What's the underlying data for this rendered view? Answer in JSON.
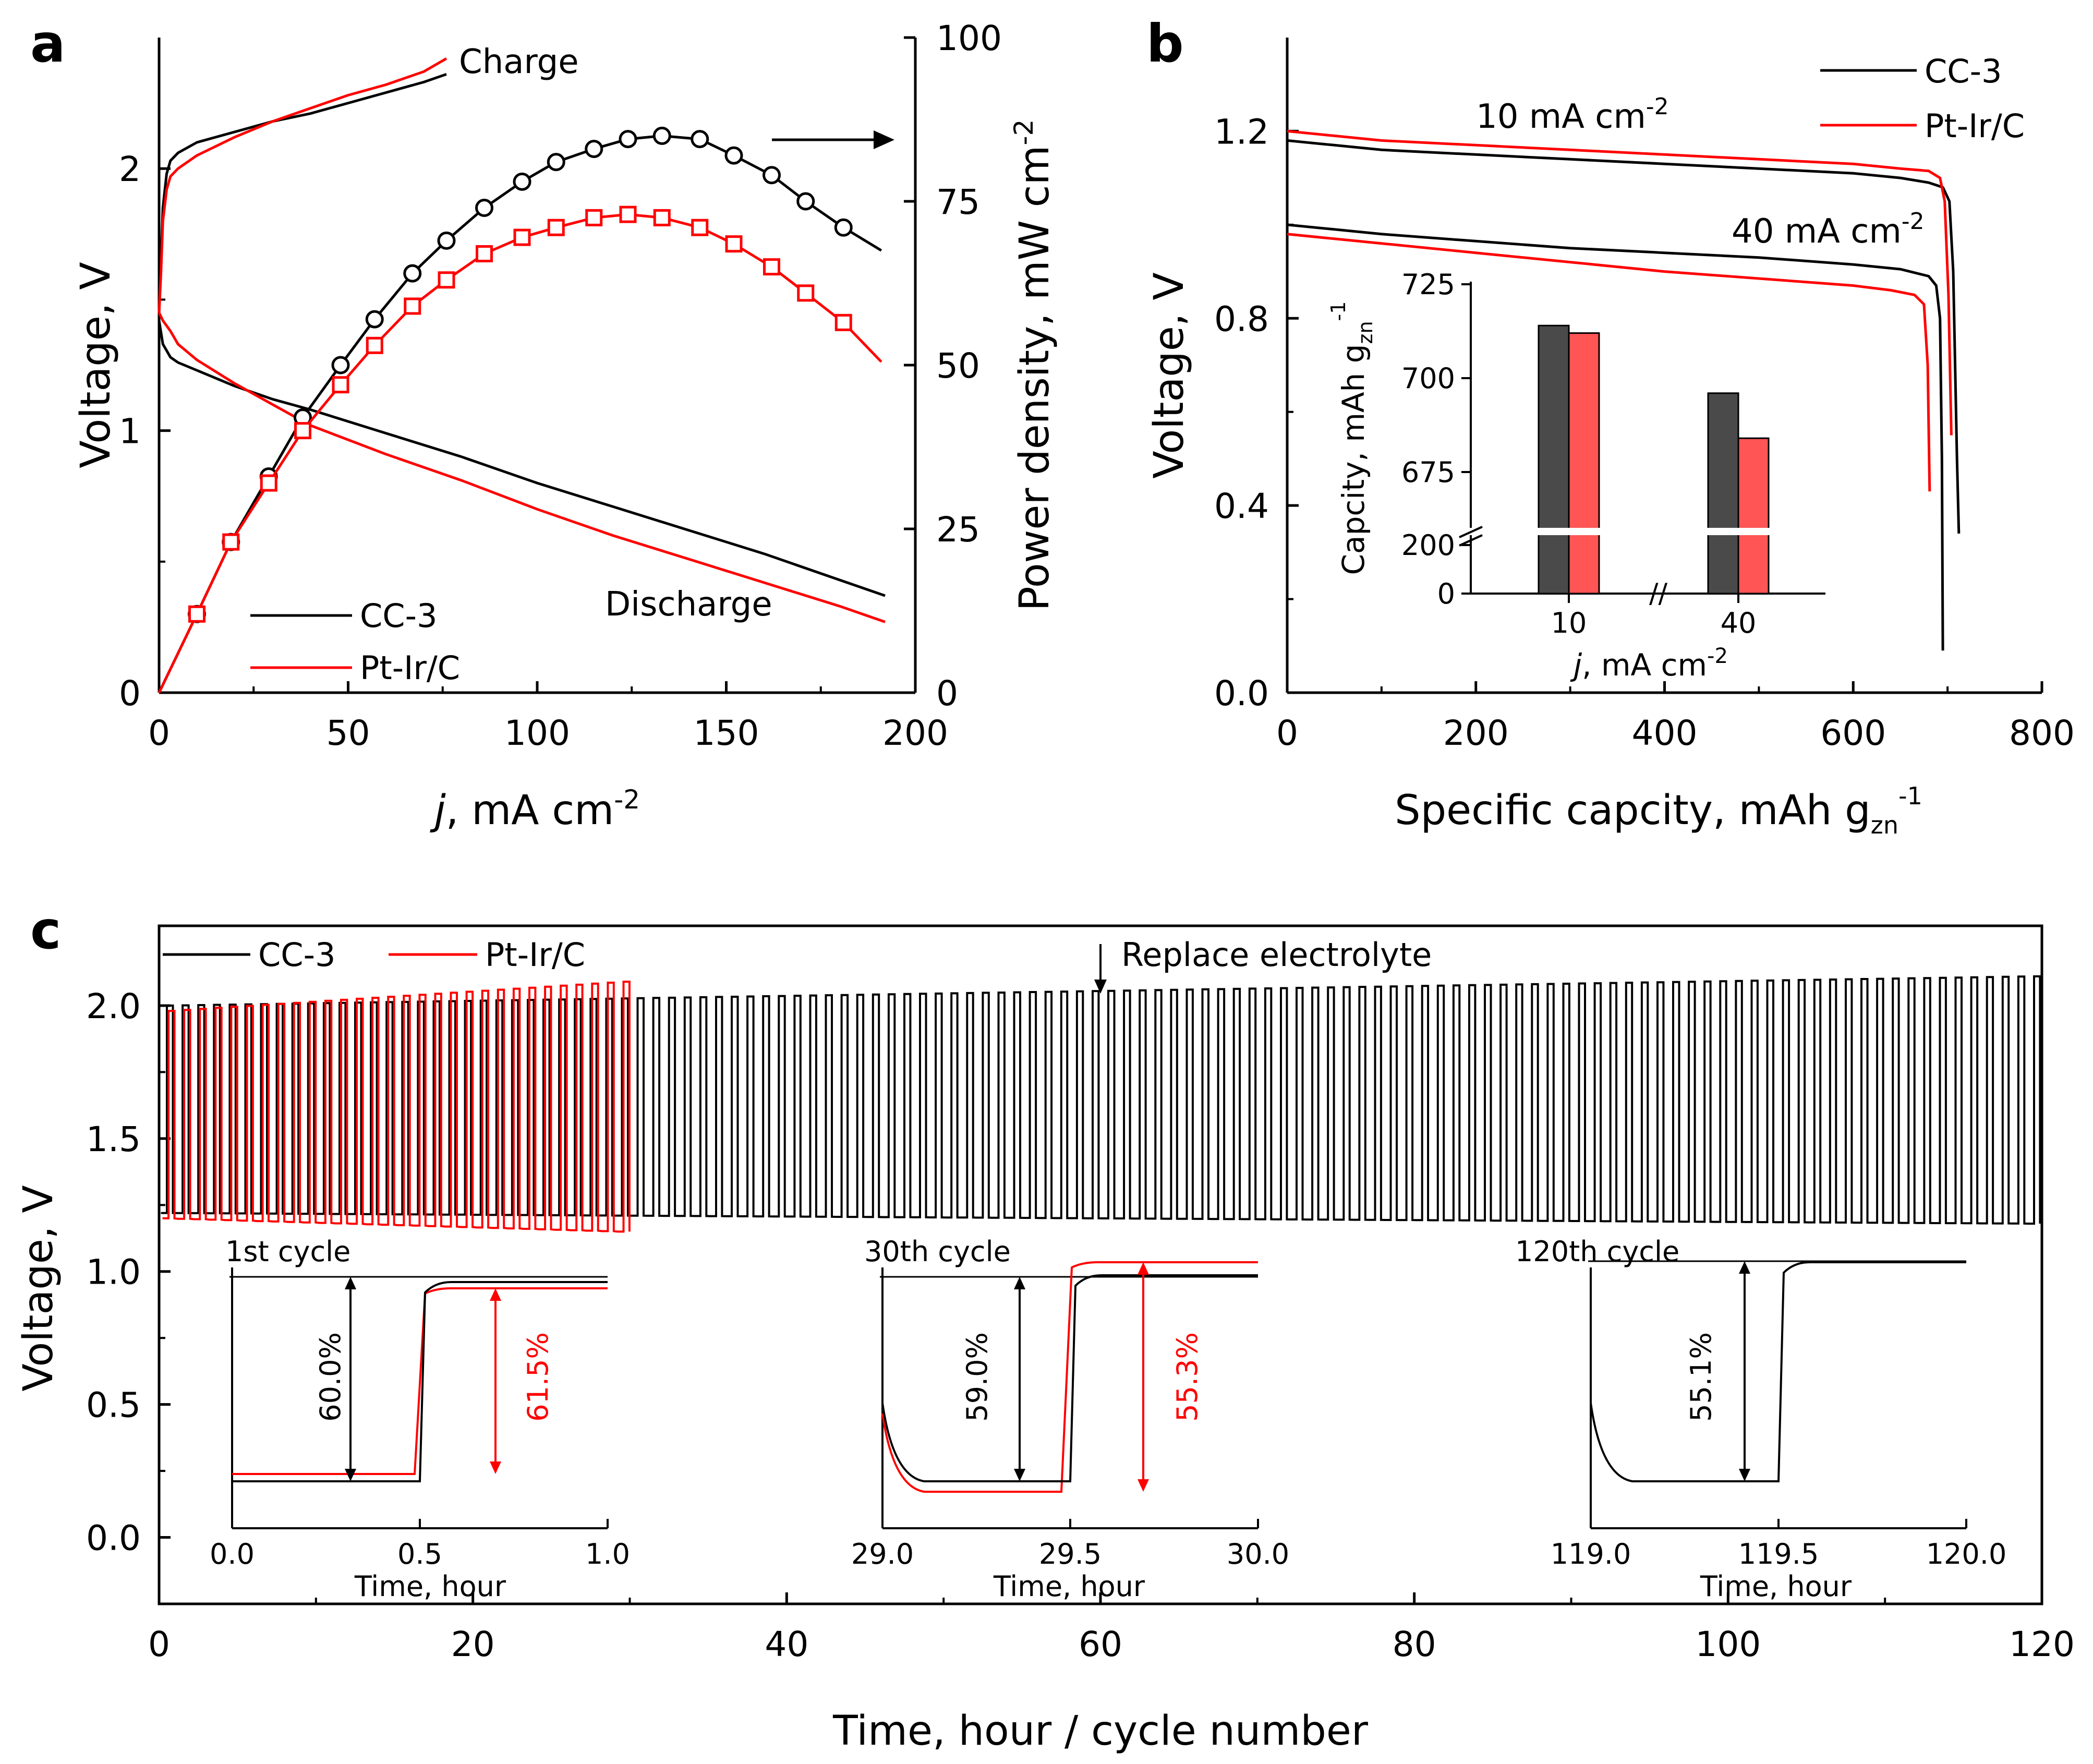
{
  "colors": {
    "cc3": "#000000",
    "ptir": "#ff0000",
    "bar_cc3": "#4a4a4a",
    "bar_ptir": "#ff5555"
  },
  "chart_data": [
    {
      "panel": "a",
      "type": "line",
      "xlabel_italic": "j",
      "xlabel_rest": ", mA cm",
      "xlabel_sup": "-2",
      "ylabel": "Voltage, V",
      "y2label": "Power density, mW cm",
      "y2label_sup": "-2",
      "xlim": [
        0,
        200
      ],
      "ylim": [
        0,
        2.5
      ],
      "y2lim": [
        0,
        100
      ],
      "xticks": [
        "0",
        "50",
        "100",
        "150",
        "200"
      ],
      "yticks": [
        "0",
        "1",
        "2"
      ],
      "y2ticks": [
        "0",
        "25",
        "50",
        "75",
        "100"
      ],
      "annotations": {
        "charge": "Charge",
        "discharge": "Discharge"
      },
      "legend": [
        "CC-3",
        "Pt-Ir/C"
      ],
      "series": [
        {
          "name": "CC-3",
          "role": "charge",
          "axis": "left",
          "x": [
            0,
            0.5,
            1,
            2,
            3,
            5,
            10,
            20,
            30,
            40,
            50,
            60,
            70,
            76
          ],
          "y": [
            1.45,
            1.65,
            1.85,
            1.98,
            2.03,
            2.06,
            2.1,
            2.14,
            2.18,
            2.21,
            2.25,
            2.29,
            2.33,
            2.36
          ]
        },
        {
          "name": "Pt-Ir/C",
          "role": "charge",
          "axis": "left",
          "x": [
            0,
            0.5,
            1,
            2,
            3,
            5,
            10,
            20,
            30,
            40,
            50,
            60,
            70,
            76
          ],
          "y": [
            1.45,
            1.6,
            1.8,
            1.92,
            1.97,
            2.0,
            2.05,
            2.12,
            2.18,
            2.23,
            2.28,
            2.32,
            2.37,
            2.42
          ]
        },
        {
          "name": "CC-3",
          "role": "discharge",
          "axis": "left",
          "x": [
            0,
            1,
            3,
            5,
            10,
            20,
            30,
            40,
            60,
            80,
            100,
            120,
            140,
            160,
            180,
            192
          ],
          "y": [
            1.42,
            1.33,
            1.28,
            1.26,
            1.23,
            1.17,
            1.12,
            1.08,
            0.99,
            0.9,
            0.8,
            0.71,
            0.62,
            0.53,
            0.43,
            0.37
          ]
        },
        {
          "name": "Pt-Ir/C",
          "role": "discharge",
          "axis": "left",
          "x": [
            0,
            1,
            3,
            5,
            10,
            20,
            30,
            40,
            60,
            80,
            100,
            120,
            140,
            160,
            180,
            192
          ],
          "y": [
            1.45,
            1.42,
            1.38,
            1.33,
            1.27,
            1.18,
            1.1,
            1.02,
            0.91,
            0.81,
            0.7,
            0.6,
            0.51,
            0.42,
            0.33,
            0.27
          ]
        },
        {
          "name": "CC-3",
          "role": "power",
          "axis": "right",
          "x": [
            0,
            10,
            19,
            29,
            38,
            48,
            57,
            67,
            76,
            86,
            96,
            105,
            115,
            124,
            133,
            143,
            152,
            162,
            171,
            181,
            191
          ],
          "y": [
            0,
            12,
            23,
            33,
            42,
            50,
            57,
            64,
            69,
            74,
            78,
            81,
            83,
            84.5,
            85,
            84.5,
            82,
            79,
            75,
            71,
            67.5
          ]
        },
        {
          "name": "Pt-Ir/C",
          "role": "power",
          "axis": "right",
          "x": [
            0,
            10,
            19,
            29,
            38,
            48,
            57,
            67,
            76,
            86,
            96,
            105,
            115,
            124,
            133,
            143,
            152,
            162,
            171,
            181,
            191
          ],
          "y": [
            0,
            12,
            23,
            32,
            40,
            47,
            53,
            59,
            63,
            67,
            69.5,
            71,
            72.5,
            73,
            72.5,
            71,
            68.5,
            65,
            61,
            56.5,
            50.5
          ]
        }
      ]
    },
    {
      "panel": "b",
      "type": "line",
      "xlabel": "Specific capcity, mAh g",
      "xlabel_sub": "zn",
      "xlabel_sup": "-1",
      "ylabel": "Voltage, V",
      "xlim": [
        0,
        800
      ],
      "ylim": [
        0,
        1.4
      ],
      "xticks": [
        "0",
        "200",
        "400",
        "600",
        "800"
      ],
      "yticks": [
        "0.0",
        "0.4",
        "0.8",
        "1.2"
      ],
      "annotations": {
        "j10_num": "10 mA cm",
        "j10_sup": "-2",
        "j40_num": "40 mA cm",
        "j40_sup": "-2"
      },
      "legend": [
        "CC-3",
        "Pt-Ir/C"
      ],
      "series": [
        {
          "name": "CC-3",
          "current": "10 mA cm-2",
          "x": [
            0,
            50,
            100,
            200,
            300,
            400,
            500,
            600,
            650,
            680,
            695,
            702,
            706,
            710,
            712
          ],
          "y": [
            1.18,
            1.17,
            1.16,
            1.15,
            1.14,
            1.13,
            1.12,
            1.11,
            1.1,
            1.09,
            1.08,
            1.05,
            0.9,
            0.5,
            0.34
          ]
        },
        {
          "name": "Pt-Ir/C",
          "current": "10 mA cm-2",
          "x": [
            0,
            50,
            100,
            200,
            300,
            400,
            500,
            600,
            650,
            680,
            692,
            697,
            701,
            704
          ],
          "y": [
            1.2,
            1.19,
            1.18,
            1.17,
            1.16,
            1.15,
            1.14,
            1.13,
            1.12,
            1.115,
            1.1,
            1.05,
            0.85,
            0.55
          ]
        },
        {
          "name": "CC-3",
          "current": "40 mA cm-2",
          "x": [
            0,
            50,
            100,
            200,
            300,
            400,
            500,
            600,
            650,
            680,
            688,
            692,
            694,
            695
          ],
          "y": [
            1.0,
            0.99,
            0.98,
            0.965,
            0.95,
            0.94,
            0.93,
            0.915,
            0.905,
            0.89,
            0.87,
            0.8,
            0.5,
            0.09
          ]
        },
        {
          "name": "Pt-Ir/C",
          "current": "40 mA cm-2",
          "x": [
            0,
            50,
            100,
            200,
            300,
            400,
            500,
            600,
            640,
            665,
            675,
            679,
            681
          ],
          "y": [
            0.98,
            0.97,
            0.96,
            0.94,
            0.92,
            0.9,
            0.885,
            0.87,
            0.86,
            0.85,
            0.83,
            0.7,
            0.43
          ]
        }
      ]
    },
    {
      "panel": "b-inset",
      "type": "bar",
      "ylabel": "Capcity, mAh g",
      "ylabel_sub": "zn",
      "ylabel_sup": "-1",
      "xlabel_italic": "j",
      "xlabel_rest": ", mA cm",
      "xlabel_sup": "-2",
      "categories": [
        "10",
        "40"
      ],
      "yticks_lower": [
        "0",
        "200"
      ],
      "yticks_upper": [
        "675",
        "700",
        "725"
      ],
      "axis_break": "//",
      "series": [
        {
          "name": "CC-3",
          "values": [
            714,
            696
          ]
        },
        {
          "name": "Pt-Ir/C",
          "values": [
            712,
            684
          ]
        }
      ]
    },
    {
      "panel": "c",
      "type": "line",
      "xlabel": "Time, hour / cycle number",
      "ylabel": "Voltage, V",
      "xlim": [
        0,
        120
      ],
      "ylim": [
        -0.25,
        2.3
      ],
      "xticks": [
        "0",
        "20",
        "40",
        "60",
        "80",
        "100",
        "120"
      ],
      "yticks": [
        "0.0",
        "0.5",
        "1.0",
        "1.5",
        "2.0"
      ],
      "legend": [
        "CC-3",
        "Pt-Ir/C"
      ],
      "annotation": "Replace electrolyte",
      "annotation_x": 60,
      "series": [
        {
          "name": "CC-3",
          "time_range": [
            0,
            120
          ],
          "discharge_voltage": [
            1.22,
            1.18
          ],
          "charge_voltage": [
            2.0,
            2.11
          ]
        },
        {
          "name": "Pt-Ir/C",
          "time_range": [
            0,
            30
          ],
          "discharge_voltage": [
            1.2,
            1.15
          ],
          "charge_voltage": [
            1.98,
            2.09
          ]
        }
      ],
      "insets": [
        {
          "title": "1st cycle",
          "xticks": [
            "0.0",
            "0.5",
            "1.0"
          ],
          "xlabel": "Time, hour",
          "efficiency_cc3": "60.0%",
          "efficiency_ptir": "61.5%"
        },
        {
          "title": "30th cycle",
          "xticks": [
            "29.0",
            "29.5",
            "30.0"
          ],
          "xlabel": "Time, hour",
          "efficiency_cc3": "59.0%",
          "efficiency_ptir": "55.3%"
        },
        {
          "title": "120th cycle",
          "xticks": [
            "119.0",
            "119.5",
            "120.0"
          ],
          "xlabel": "Time, hour",
          "efficiency_cc3": "55.1%"
        }
      ]
    }
  ]
}
